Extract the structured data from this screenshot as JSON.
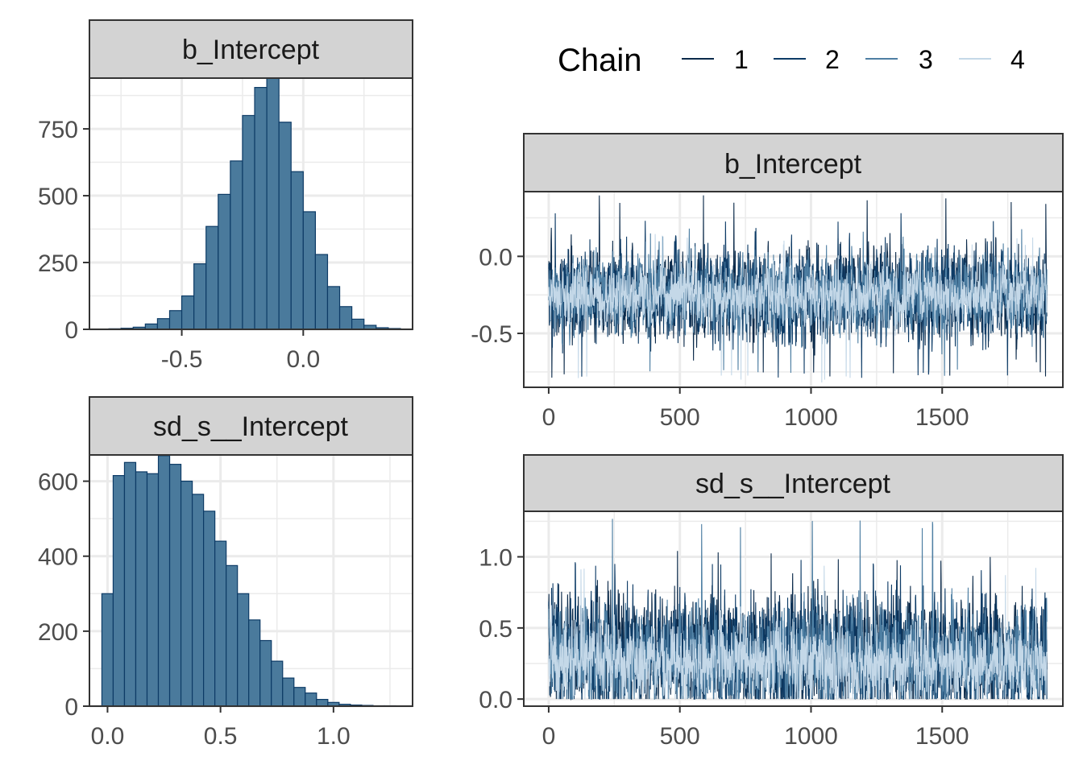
{
  "legend": {
    "title": "Chain",
    "items": [
      {
        "label": "1",
        "color": "#0b2a4a"
      },
      {
        "label": "2",
        "color": "#0d3b66"
      },
      {
        "label": "3",
        "color": "#4e7fa3"
      },
      {
        "label": "4",
        "color": "#c4d8e8"
      }
    ]
  },
  "colors": {
    "hist_fill": "#4a7a9c",
    "hist_stroke": "#0d3b66",
    "strip_fill": "#d3d3d3",
    "panel_border": "#333333",
    "grid": "#ebebeb"
  },
  "chart_data": [
    {
      "type": "bar",
      "panel": "histogram",
      "title": "b_Intercept",
      "xlim": [
        -0.88,
        0.45
      ],
      "ylim": [
        0,
        940
      ],
      "x_ticks": [
        -0.5,
        0.0
      ],
      "x_tick_labels": [
        "-0.5",
        "0.0"
      ],
      "y_ticks": [
        0,
        250,
        500,
        750
      ],
      "y_tick_labels": [
        "0",
        "250",
        "500",
        "750"
      ],
      "bin_width": 0.05,
      "bin_centers": [
        -0.775,
        -0.725,
        -0.675,
        -0.625,
        -0.575,
        -0.525,
        -0.475,
        -0.425,
        -0.375,
        -0.325,
        -0.275,
        -0.225,
        -0.175,
        -0.125,
        -0.075,
        -0.025,
        0.025,
        0.075,
        0.125,
        0.175,
        0.225,
        0.275,
        0.325,
        0.375
      ],
      "values": [
        2,
        4,
        8,
        20,
        40,
        70,
        125,
        245,
        385,
        505,
        630,
        800,
        905,
        940,
        775,
        590,
        440,
        280,
        160,
        85,
        38,
        15,
        6,
        3
      ]
    },
    {
      "type": "bar",
      "panel": "histogram",
      "title": "sd_s__Intercept",
      "xlim": [
        -0.08,
        1.35
      ],
      "ylim": [
        0,
        670
      ],
      "x_ticks": [
        0.0,
        0.5,
        1.0
      ],
      "x_tick_labels": [
        "0.0",
        "0.5",
        "1.0"
      ],
      "y_ticks": [
        0,
        200,
        400,
        600
      ],
      "y_tick_labels": [
        "0",
        "200",
        "400",
        "600"
      ],
      "bin_width": 0.05,
      "bin_centers": [
        0.0,
        0.05,
        0.1,
        0.15,
        0.2,
        0.25,
        0.3,
        0.35,
        0.4,
        0.45,
        0.5,
        0.55,
        0.6,
        0.65,
        0.7,
        0.75,
        0.8,
        0.85,
        0.9,
        0.95,
        1.0,
        1.05,
        1.1,
        1.15,
        1.2,
        1.25
      ],
      "values": [
        300,
        615,
        650,
        625,
        620,
        668,
        645,
        600,
        565,
        520,
        440,
        375,
        300,
        230,
        175,
        120,
        75,
        50,
        35,
        18,
        10,
        5,
        3,
        2,
        1,
        1
      ]
    },
    {
      "type": "line",
      "panel": "trace",
      "title": "b_Intercept",
      "xlim": [
        -95,
        1960
      ],
      "ylim": [
        -0.85,
        0.42
      ],
      "x_ticks": [
        0,
        500,
        1000,
        1500
      ],
      "x_tick_labels": [
        "0",
        "500",
        "1000",
        "1500"
      ],
      "y_ticks": [
        -0.5,
        0.0
      ],
      "y_tick_labels": [
        "-0.5",
        "0.0"
      ],
      "n_iter": 1900,
      "series": [
        {
          "name": "1",
          "mean": -0.26,
          "sd": 0.14,
          "min": -0.8,
          "max": 0.4
        },
        {
          "name": "2",
          "mean": -0.25,
          "sd": 0.14,
          "min": -0.8,
          "max": 0.3
        },
        {
          "name": "3",
          "mean": -0.25,
          "sd": 0.12,
          "min": -0.78,
          "max": 0.2
        },
        {
          "name": "4",
          "mean": -0.25,
          "sd": 0.09,
          "min": -0.82,
          "max": 0.15
        }
      ]
    },
    {
      "type": "line",
      "panel": "trace",
      "title": "sd_s__Intercept",
      "xlim": [
        -95,
        1960
      ],
      "ylim": [
        -0.05,
        1.32
      ],
      "x_ticks": [
        0,
        500,
        1000,
        1500
      ],
      "x_tick_labels": [
        "0",
        "500",
        "1000",
        "1500"
      ],
      "y_ticks": [
        0.0,
        0.5,
        1.0
      ],
      "y_tick_labels": [
        "0.0",
        "0.5",
        "1.0"
      ],
      "n_iter": 1900,
      "series": [
        {
          "name": "1",
          "mean": 0.3,
          "sd": 0.2,
          "min": 0.0,
          "max": 1.05
        },
        {
          "name": "2",
          "mean": 0.3,
          "sd": 0.2,
          "min": 0.0,
          "max": 1.0
        },
        {
          "name": "3",
          "mean": 0.28,
          "sd": 0.17,
          "min": 0.0,
          "max": 1.27
        },
        {
          "name": "4",
          "mean": 0.26,
          "sd": 0.13,
          "min": 0.0,
          "max": 0.95
        }
      ]
    }
  ]
}
